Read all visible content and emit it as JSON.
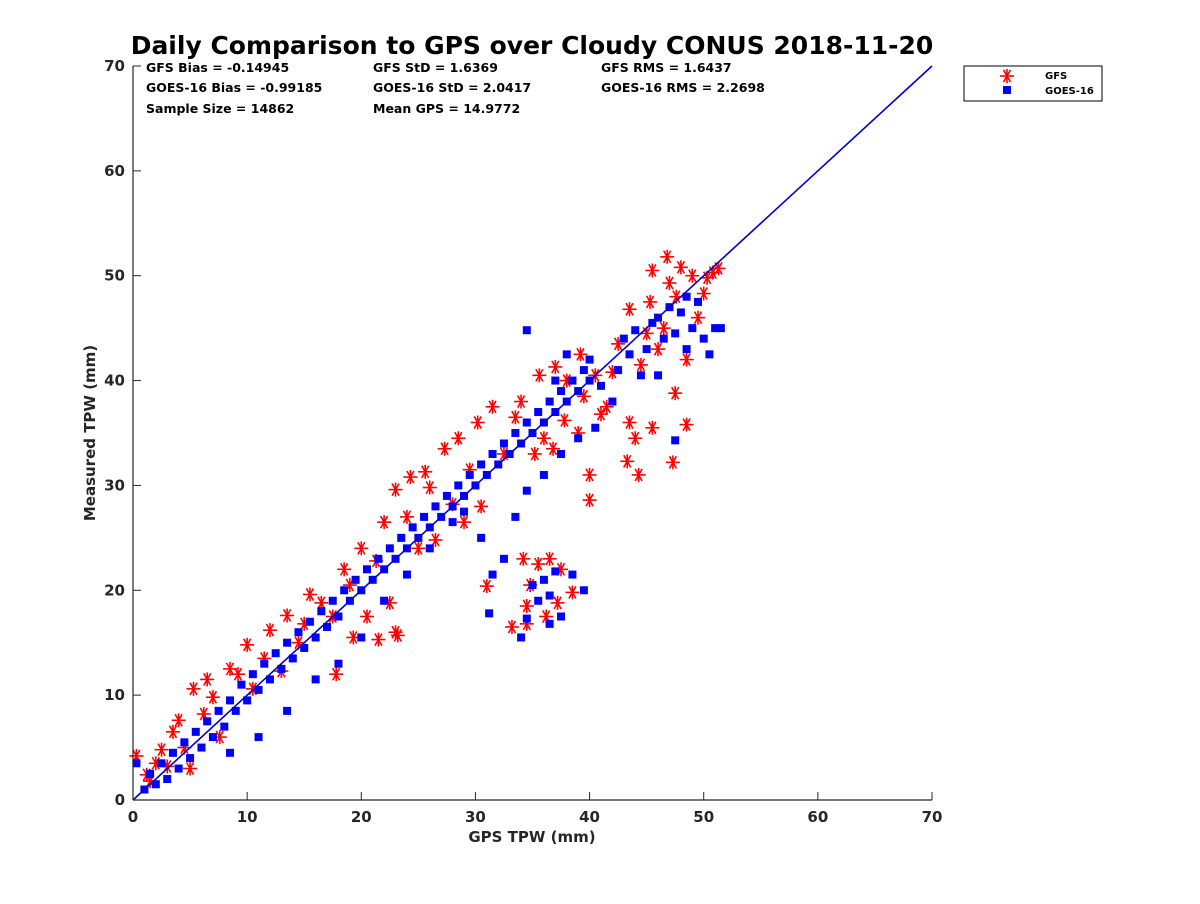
{
  "chart_data": {
    "type": "scatter",
    "title": "Daily Comparison to GPS over Cloudy CONUS 2018-11-20",
    "xlabel": "GPS TPW (mm)",
    "ylabel": "Measured TPW (mm)",
    "xlim": [
      0,
      70
    ],
    "ylim": [
      0,
      70
    ],
    "xticks": [
      0,
      10,
      20,
      30,
      40,
      50,
      60,
      70
    ],
    "yticks": [
      0,
      10,
      20,
      30,
      40,
      50,
      60,
      70
    ],
    "grid": false,
    "legend_position": "top-right outside",
    "stats": [
      [
        "GFS Bias = -0.14945",
        "GFS StD = 1.6369",
        "GFS RMS = 1.6437"
      ],
      [
        "GOES-16 Bias = -0.99185",
        "GOES-16 StD = 2.0417",
        "GOES-16 RMS = 2.2698"
      ],
      [
        "Sample Size = 14862",
        "Mean GPS = 14.9772",
        ""
      ]
    ],
    "reference_line": {
      "color": "#0000cc",
      "x": [
        0,
        70
      ],
      "y": [
        0,
        70
      ]
    },
    "series": [
      {
        "name": "GFS",
        "marker": "asterisk",
        "color": "#ff0000",
        "points": [
          [
            0.3,
            4.2
          ],
          [
            1.2,
            2.4
          ],
          [
            1.5,
            1.8
          ],
          [
            2.0,
            3.5
          ],
          [
            2.5,
            4.8
          ],
          [
            3.0,
            3.2
          ],
          [
            3.5,
            6.5
          ],
          [
            4.0,
            7.6
          ],
          [
            4.5,
            5.0
          ],
          [
            5.0,
            3.0
          ],
          [
            5.3,
            10.6
          ],
          [
            6.2,
            8.2
          ],
          [
            6.5,
            11.5
          ],
          [
            7.0,
            9.8
          ],
          [
            7.6,
            6.0
          ],
          [
            8.5,
            12.5
          ],
          [
            9.2,
            12.0
          ],
          [
            10.0,
            14.8
          ],
          [
            10.5,
            10.6
          ],
          [
            11.5,
            13.5
          ],
          [
            12.0,
            16.2
          ],
          [
            13.0,
            12.3
          ],
          [
            13.5,
            17.6
          ],
          [
            14.5,
            15.0
          ],
          [
            15.0,
            16.8
          ],
          [
            15.5,
            19.6
          ],
          [
            16.5,
            18.8
          ],
          [
            17.5,
            17.5
          ],
          [
            18.5,
            22.0
          ],
          [
            17.8,
            12.0
          ],
          [
            19.0,
            20.5
          ],
          [
            19.3,
            15.5
          ],
          [
            20.0,
            24.0
          ],
          [
            20.5,
            17.5
          ],
          [
            21.3,
            22.8
          ],
          [
            21.5,
            15.3
          ],
          [
            22.0,
            26.5
          ],
          [
            22.5,
            18.8
          ],
          [
            23.0,
            29.6
          ],
          [
            23.0,
            16.0
          ],
          [
            23.2,
            15.7
          ],
          [
            24.0,
            27.0
          ],
          [
            24.3,
            30.8
          ],
          [
            25.0,
            24.0
          ],
          [
            25.6,
            31.3
          ],
          [
            26.0,
            29.8
          ],
          [
            26.5,
            24.8
          ],
          [
            27.3,
            33.5
          ],
          [
            28.0,
            28.2
          ],
          [
            28.5,
            34.5
          ],
          [
            29.0,
            26.5
          ],
          [
            29.5,
            31.5
          ],
          [
            30.2,
            36.0
          ],
          [
            30.5,
            28.0
          ],
          [
            31.0,
            20.4
          ],
          [
            31.5,
            37.5
          ],
          [
            32.5,
            33.0
          ],
          [
            33.2,
            16.5
          ],
          [
            33.5,
            36.5
          ],
          [
            34.0,
            38.0
          ],
          [
            34.2,
            23.0
          ],
          [
            34.5,
            18.5
          ],
          [
            34.5,
            16.8
          ],
          [
            34.8,
            20.5
          ],
          [
            35.2,
            33.0
          ],
          [
            35.5,
            22.5
          ],
          [
            35.6,
            40.5
          ],
          [
            36.0,
            34.5
          ],
          [
            36.2,
            17.5
          ],
          [
            36.5,
            23.0
          ],
          [
            36.8,
            33.5
          ],
          [
            37.0,
            41.3
          ],
          [
            37.2,
            18.8
          ],
          [
            37.5,
            22.0
          ],
          [
            37.8,
            36.2
          ],
          [
            38.0,
            40.0
          ],
          [
            38.5,
            19.8
          ],
          [
            39.0,
            35.0
          ],
          [
            39.2,
            42.5
          ],
          [
            39.5,
            38.5
          ],
          [
            40.0,
            31.0
          ],
          [
            40.0,
            28.6
          ],
          [
            40.5,
            40.5
          ],
          [
            41.0,
            36.8
          ],
          [
            41.5,
            37.5
          ],
          [
            42.0,
            40.8
          ],
          [
            42.5,
            43.5
          ],
          [
            43.3,
            32.3
          ],
          [
            43.5,
            36.0
          ],
          [
            43.5,
            46.8
          ],
          [
            44.0,
            34.5
          ],
          [
            44.3,
            31.0
          ],
          [
            44.5,
            41.5
          ],
          [
            45.0,
            44.5
          ],
          [
            45.3,
            47.5
          ],
          [
            45.5,
            50.5
          ],
          [
            45.5,
            35.5
          ],
          [
            46.0,
            43.0
          ],
          [
            46.5,
            45.0
          ],
          [
            46.8,
            51.8
          ],
          [
            47.0,
            49.3
          ],
          [
            47.3,
            32.2
          ],
          [
            47.5,
            38.8
          ],
          [
            47.6,
            48.0
          ],
          [
            48.0,
            50.8
          ],
          [
            48.5,
            35.8
          ],
          [
            48.5,
            42.0
          ],
          [
            49.0,
            50.0
          ],
          [
            49.5,
            46.0
          ],
          [
            50.0,
            48.3
          ],
          [
            50.3,
            49.8
          ],
          [
            50.8,
            50.3
          ],
          [
            51.3,
            50.7
          ]
        ]
      },
      {
        "name": "GOES-16",
        "marker": "square",
        "color": "#0000ff",
        "points": [
          [
            0.3,
            3.5
          ],
          [
            1.0,
            1.0
          ],
          [
            1.5,
            2.5
          ],
          [
            2.0,
            1.5
          ],
          [
            2.5,
            3.5
          ],
          [
            3.0,
            2.0
          ],
          [
            3.5,
            4.5
          ],
          [
            4.0,
            3.0
          ],
          [
            4.5,
            5.5
          ],
          [
            5.0,
            4.0
          ],
          [
            5.5,
            6.5
          ],
          [
            6.0,
            5.0
          ],
          [
            6.5,
            7.5
          ],
          [
            7.0,
            6.0
          ],
          [
            7.5,
            8.5
          ],
          [
            8.0,
            7.0
          ],
          [
            8.5,
            9.5
          ],
          [
            9.0,
            8.5
          ],
          [
            9.5,
            11.0
          ],
          [
            10.0,
            9.5
          ],
          [
            10.5,
            12.0
          ],
          [
            11.0,
            10.5
          ],
          [
            11.5,
            13.0
          ],
          [
            12.0,
            11.5
          ],
          [
            12.5,
            14.0
          ],
          [
            13.0,
            12.5
          ],
          [
            13.5,
            15.0
          ],
          [
            14.0,
            13.5
          ],
          [
            14.5,
            16.0
          ],
          [
            15.0,
            14.5
          ],
          [
            15.5,
            17.0
          ],
          [
            16.0,
            15.5
          ],
          [
            16.5,
            18.0
          ],
          [
            17.0,
            16.5
          ],
          [
            17.5,
            19.0
          ],
          [
            18.0,
            17.5
          ],
          [
            18.5,
            20.0
          ],
          [
            19.0,
            19.0
          ],
          [
            19.5,
            21.0
          ],
          [
            20.0,
            20.0
          ],
          [
            20.5,
            22.0
          ],
          [
            21.0,
            21.0
          ],
          [
            21.5,
            23.0
          ],
          [
            22.0,
            22.0
          ],
          [
            22.5,
            24.0
          ],
          [
            23.0,
            23.0
          ],
          [
            23.5,
            25.0
          ],
          [
            24.0,
            24.0
          ],
          [
            24.5,
            26.0
          ],
          [
            25.0,
            25.0
          ],
          [
            25.5,
            27.0
          ],
          [
            26.0,
            26.0
          ],
          [
            26.5,
            28.0
          ],
          [
            27.0,
            27.0
          ],
          [
            27.5,
            29.0
          ],
          [
            28.0,
            28.0
          ],
          [
            28.5,
            30.0
          ],
          [
            29.0,
            29.0
          ],
          [
            29.5,
            31.0
          ],
          [
            30.0,
            30.0
          ],
          [
            30.5,
            32.0
          ],
          [
            31.0,
            31.0
          ],
          [
            31.5,
            33.0
          ],
          [
            32.0,
            32.0
          ],
          [
            32.5,
            34.0
          ],
          [
            33.0,
            33.0
          ],
          [
            33.5,
            35.0
          ],
          [
            34.0,
            34.0
          ],
          [
            34.5,
            36.0
          ],
          [
            35.0,
            35.0
          ],
          [
            35.5,
            37.0
          ],
          [
            36.0,
            36.0
          ],
          [
            36.5,
            38.0
          ],
          [
            37.0,
            37.0
          ],
          [
            37.5,
            39.0
          ],
          [
            38.0,
            38.0
          ],
          [
            38.5,
            40.0
          ],
          [
            39.0,
            39.0
          ],
          [
            39.5,
            41.0
          ],
          [
            40.0,
            40.0
          ],
          [
            8.5,
            4.5
          ],
          [
            11.0,
            6.0
          ],
          [
            13.5,
            8.5
          ],
          [
            16.0,
            11.5
          ],
          [
            18.0,
            13.0
          ],
          [
            20.0,
            15.5
          ],
          [
            22.0,
            19.0
          ],
          [
            24.0,
            21.5
          ],
          [
            26.0,
            24.0
          ],
          [
            28.0,
            26.5
          ],
          [
            29.0,
            27.5
          ],
          [
            30.5,
            25.0
          ],
          [
            31.5,
            21.5
          ],
          [
            32.5,
            23.0
          ],
          [
            33.5,
            27.0
          ],
          [
            34.5,
            29.5
          ],
          [
            36.0,
            31.0
          ],
          [
            37.5,
            33.0
          ],
          [
            39.0,
            34.5
          ],
          [
            40.5,
            35.5
          ],
          [
            31.2,
            17.8
          ],
          [
            34.0,
            15.5
          ],
          [
            34.5,
            17.3
          ],
          [
            35.0,
            20.5
          ],
          [
            35.5,
            19.0
          ],
          [
            36.0,
            21.0
          ],
          [
            36.5,
            19.5
          ],
          [
            37.0,
            21.8
          ],
          [
            37.5,
            17.5
          ],
          [
            38.5,
            21.5
          ],
          [
            39.5,
            20.0
          ],
          [
            36.5,
            16.8
          ],
          [
            34.5,
            44.8
          ],
          [
            41.0,
            39.5
          ],
          [
            42.0,
            38.0
          ],
          [
            42.5,
            41.0
          ],
          [
            43.0,
            44.0
          ],
          [
            43.5,
            42.5
          ],
          [
            44.0,
            44.8
          ],
          [
            44.5,
            40.5
          ],
          [
            45.0,
            43.0
          ],
          [
            45.5,
            45.5
          ],
          [
            46.0,
            46.0
          ],
          [
            46.5,
            44.0
          ],
          [
            47.0,
            47.0
          ],
          [
            47.5,
            44.5
          ],
          [
            48.0,
            46.5
          ],
          [
            48.5,
            48.0
          ],
          [
            49.0,
            45.0
          ],
          [
            49.5,
            47.5
          ],
          [
            50.0,
            44.0
          ],
          [
            50.5,
            42.5
          ],
          [
            51.0,
            45.0
          ],
          [
            51.5,
            45.0
          ],
          [
            48.5,
            43.0
          ],
          [
            47.5,
            34.3
          ],
          [
            46.0,
            40.5
          ],
          [
            40.0,
            42.0
          ],
          [
            38.0,
            42.5
          ],
          [
            37.0,
            40.0
          ]
        ]
      }
    ]
  }
}
